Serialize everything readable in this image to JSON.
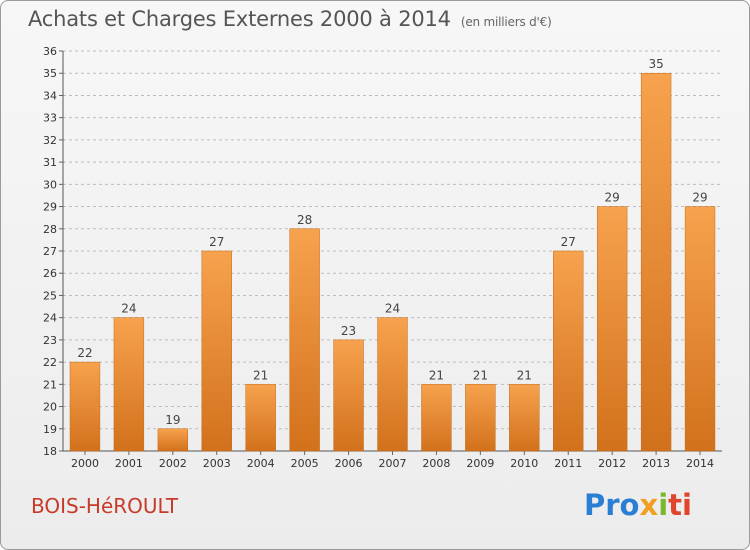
{
  "header": {
    "title": "Achats et Charges Externes 2000 à 2014",
    "unit": "(en milliers d'€)"
  },
  "footer": {
    "city": "BOIS-HéROULT",
    "logo": [
      "Pro",
      "x",
      "i",
      "ti"
    ]
  },
  "colors": {
    "bar_top": "#f7a24e",
    "bar_bottom": "#d2711c",
    "grid": "#bdbdbd",
    "city": "#c83a2a"
  },
  "chart_data": {
    "type": "bar",
    "title": "Achats et Charges Externes 2000 à 2014",
    "subtitle": "(en milliers d'€)",
    "categories": [
      "2000",
      "2001",
      "2002",
      "2003",
      "2004",
      "2005",
      "2006",
      "2007",
      "2008",
      "2009",
      "2010",
      "2011",
      "2012",
      "2013",
      "2014"
    ],
    "values": [
      22,
      24,
      19,
      27,
      21,
      28,
      23,
      24,
      21,
      21,
      21,
      27,
      29,
      35,
      29
    ],
    "ylim": [
      18,
      36
    ],
    "yticks": [
      18,
      19,
      20,
      21,
      22,
      23,
      24,
      25,
      26,
      27,
      28,
      29,
      30,
      31,
      32,
      33,
      34,
      35,
      36
    ],
    "grid": true,
    "xlabel": "",
    "ylabel": ""
  }
}
